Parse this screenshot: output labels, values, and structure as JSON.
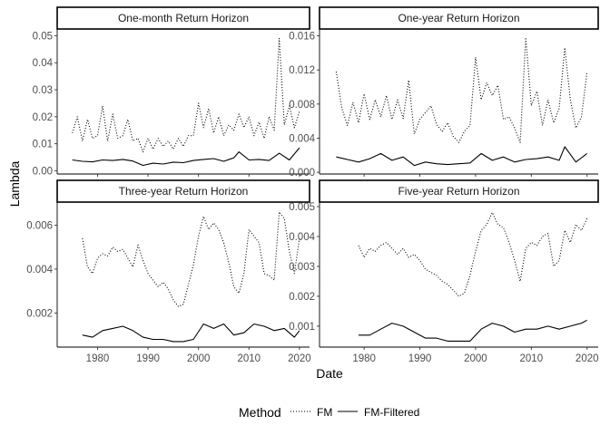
{
  "chart_data": {
    "type": "line",
    "xlabel": "Date",
    "ylabel": "Lambda",
    "legend": {
      "title": "Method",
      "placement": "bottom",
      "entries": [
        {
          "label": "FM",
          "style": "dotted"
        },
        {
          "label": "FM-Filtered",
          "style": "solid"
        }
      ]
    },
    "line_color": "#000000",
    "x_ticks": [
      1980,
      1990,
      2000,
      2010,
      2020
    ],
    "x_tick_labels": [
      "1980",
      "1990",
      "2000",
      "2010",
      "2020"
    ],
    "panels": [
      {
        "title": "One-month Return Horizon",
        "xlim": [
          1972,
          2022
        ],
        "ylim": [
          -0.0012,
          0.0525
        ],
        "y_ticks": [
          0.0,
          0.01,
          0.02,
          0.03,
          0.04,
          0.05
        ],
        "y_tick_labels": [
          "0.00",
          "0.01",
          "0.02",
          "0.03",
          "0.04",
          "0.05"
        ],
        "series": [
          {
            "name": "FM",
            "style": "dotted",
            "x": [
              1975,
              1976,
              1977,
              1978,
              1979,
              1980,
              1981,
              1982,
              1983,
              1984,
              1985,
              1986,
              1987,
              1988,
              1989,
              1990,
              1991,
              1992,
              1993,
              1994,
              1995,
              1996,
              1997,
              1998,
              1999,
              2000,
              2001,
              2002,
              2003,
              2004,
              2005,
              2006,
              2007,
              2008,
              2009,
              2010,
              2011,
              2012,
              2013,
              2014,
              2015,
              2016,
              2017,
              2018,
              2019,
              2020
            ],
            "y": [
              0.014,
              0.02,
              0.011,
              0.019,
              0.012,
              0.013,
              0.024,
              0.011,
              0.021,
              0.012,
              0.013,
              0.019,
              0.011,
              0.012,
              0.007,
              0.012,
              0.008,
              0.012,
              0.009,
              0.011,
              0.008,
              0.012,
              0.009,
              0.013,
              0.013,
              0.025,
              0.016,
              0.023,
              0.014,
              0.02,
              0.013,
              0.017,
              0.015,
              0.021,
              0.016,
              0.02,
              0.013,
              0.018,
              0.012,
              0.02,
              0.015,
              0.049,
              0.017,
              0.024,
              0.016,
              0.022
            ]
          },
          {
            "name": "FM-Filtered",
            "style": "solid",
            "x": [
              1975,
              1977,
              1979,
              1981,
              1983,
              1985,
              1987,
              1989,
              1991,
              1993,
              1995,
              1997,
              1999,
              2001,
              2003,
              2005,
              2007,
              2008,
              2010,
              2012,
              2014,
              2016,
              2018,
              2020
            ],
            "y": [
              0.004,
              0.0035,
              0.0033,
              0.004,
              0.0038,
              0.0042,
              0.0036,
              0.002,
              0.0028,
              0.0025,
              0.0032,
              0.003,
              0.0038,
              0.0042,
              0.0045,
              0.0035,
              0.0048,
              0.007,
              0.004,
              0.0042,
              0.0038,
              0.0065,
              0.004,
              0.0085
            ]
          }
        ]
      },
      {
        "title": "One-year Return Horizon",
        "xlim": [
          1972,
          2022
        ],
        "ylim": [
          -0.0002,
          0.0168
        ],
        "y_ticks": [
          0.0,
          0.004,
          0.008,
          0.012,
          0.016
        ],
        "y_tick_labels": [
          "0.000",
          "0.004",
          "0.008",
          "0.012",
          "0.016"
        ],
        "series": [
          {
            "name": "FM",
            "style": "dotted",
            "x": [
              1975,
              1976,
              1977,
              1978,
              1979,
              1980,
              1981,
              1982,
              1983,
              1984,
              1985,
              1986,
              1987,
              1988,
              1989,
              1990,
              1991,
              1992,
              1993,
              1994,
              1995,
              1996,
              1997,
              1998,
              1999,
              2000,
              2001,
              2002,
              2003,
              2004,
              2005,
              2006,
              2007,
              2008,
              2009,
              2010,
              2011,
              2012,
              2013,
              2014,
              2015,
              2016,
              2017,
              2018,
              2019,
              2020
            ],
            "y": [
              0.0118,
              0.0075,
              0.0055,
              0.0082,
              0.0058,
              0.0092,
              0.0062,
              0.0085,
              0.0065,
              0.009,
              0.0062,
              0.0085,
              0.0063,
              0.0108,
              0.0045,
              0.0062,
              0.007,
              0.0078,
              0.0056,
              0.0048,
              0.0058,
              0.0042,
              0.0035,
              0.0048,
              0.0055,
              0.0135,
              0.0085,
              0.0105,
              0.009,
              0.0102,
              0.0062,
              0.0065,
              0.0052,
              0.0035,
              0.0158,
              0.0078,
              0.0095,
              0.0055,
              0.0085,
              0.0058,
              0.0075,
              0.0146,
              0.0085,
              0.0052,
              0.0065,
              0.0118
            ]
          },
          {
            "name": "FM-Filtered",
            "style": "solid",
            "x": [
              1975,
              1977,
              1979,
              1981,
              1983,
              1985,
              1987,
              1989,
              1991,
              1993,
              1995,
              1997,
              1999,
              2001,
              2003,
              2005,
              2007,
              2009,
              2011,
              2013,
              2015,
              2016,
              2018,
              2020
            ],
            "y": [
              0.0018,
              0.0015,
              0.0012,
              0.0016,
              0.0022,
              0.0014,
              0.0018,
              0.0008,
              0.0012,
              0.001,
              0.0009,
              0.001,
              0.0011,
              0.0022,
              0.0014,
              0.0018,
              0.0012,
              0.0015,
              0.0016,
              0.0018,
              0.0014,
              0.003,
              0.0012,
              0.0022
            ]
          }
        ]
      },
      {
        "title": "Three-year Return Horizon",
        "xlim": [
          1972,
          2022
        ],
        "ylim": [
          0.00045,
          0.00705
        ],
        "y_ticks": [
          0.002,
          0.004,
          0.006
        ],
        "y_tick_labels": [
          "0.002",
          "0.004",
          "0.006"
        ],
        "series": [
          {
            "name": "FM",
            "style": "dotted",
            "x": [
              1977,
              1978,
              1979,
              1980,
              1981,
              1982,
              1983,
              1984,
              1985,
              1986,
              1987,
              1988,
              1989,
              1990,
              1991,
              1992,
              1993,
              1994,
              1995,
              1996,
              1997,
              1998,
              1999,
              2000,
              2001,
              2002,
              2003,
              2004,
              2005,
              2006,
              2007,
              2008,
              2009,
              2010,
              2011,
              2012,
              2013,
              2014,
              2015,
              2016,
              2017,
              2018,
              2019,
              2020
            ],
            "y": [
              0.0054,
              0.0041,
              0.0038,
              0.0045,
              0.0047,
              0.0046,
              0.005,
              0.0048,
              0.0049,
              0.0045,
              0.0041,
              0.0051,
              0.0044,
              0.0038,
              0.0035,
              0.0032,
              0.0034,
              0.0031,
              0.0026,
              0.0023,
              0.0024,
              0.0033,
              0.0042,
              0.0055,
              0.0064,
              0.0058,
              0.0061,
              0.0058,
              0.0052,
              0.0043,
              0.0032,
              0.0029,
              0.0038,
              0.0058,
              0.0055,
              0.0052,
              0.0038,
              0.0037,
              0.0035,
              0.0066,
              0.0063,
              0.0048,
              0.0038,
              0.0054
            ]
          },
          {
            "name": "FM-Filtered",
            "style": "solid",
            "x": [
              1977,
              1979,
              1981,
              1983,
              1985,
              1987,
              1989,
              1991,
              1993,
              1995,
              1997,
              1999,
              2001,
              2003,
              2005,
              2007,
              2009,
              2011,
              2013,
              2015,
              2017,
              2019,
              2020
            ],
            "y": [
              0.001,
              0.0009,
              0.0012,
              0.0013,
              0.0014,
              0.0012,
              0.0009,
              0.0008,
              0.0008,
              0.0007,
              0.0007,
              0.0008,
              0.0015,
              0.0013,
              0.0015,
              0.001,
              0.0011,
              0.0015,
              0.0014,
              0.0012,
              0.0013,
              0.0009,
              0.0012
            ]
          }
        ]
      },
      {
        "title": "Five-year Return Horizon",
        "xlim": [
          1972,
          2022
        ],
        "ylim": [
          0.0003,
          0.00515
        ],
        "y_ticks": [
          0.001,
          0.002,
          0.003,
          0.004,
          0.005
        ],
        "y_tick_labels": [
          "0.001",
          "0.002",
          "0.003",
          "0.004",
          "0.005"
        ],
        "series": [
          {
            "name": "FM",
            "style": "dotted",
            "x": [
              1979,
              1980,
              1981,
              1982,
              1983,
              1984,
              1985,
              1986,
              1987,
              1988,
              1989,
              1990,
              1991,
              1992,
              1993,
              1994,
              1995,
              1996,
              1997,
              1998,
              1999,
              2000,
              2001,
              2002,
              2003,
              2004,
              2005,
              2006,
              2007,
              2008,
              2009,
              2010,
              2011,
              2012,
              2013,
              2014,
              2015,
              2016,
              2017,
              2018,
              2019,
              2020
            ],
            "y": [
              0.0037,
              0.0033,
              0.0036,
              0.0035,
              0.0037,
              0.0038,
              0.0036,
              0.0034,
              0.0036,
              0.0033,
              0.0034,
              0.0032,
              0.0029,
              0.0028,
              0.0027,
              0.0025,
              0.0024,
              0.0022,
              0.002,
              0.0021,
              0.0027,
              0.0035,
              0.0042,
              0.0044,
              0.0048,
              0.0044,
              0.0043,
              0.0038,
              0.0032,
              0.0025,
              0.0036,
              0.0038,
              0.0037,
              0.004,
              0.0041,
              0.003,
              0.0032,
              0.0042,
              0.0038,
              0.0044,
              0.0042,
              0.0046
            ]
          },
          {
            "name": "FM-Filtered",
            "style": "solid",
            "x": [
              1979,
              1981,
              1983,
              1985,
              1987,
              1989,
              1991,
              1993,
              1995,
              1997,
              1999,
              2001,
              2003,
              2005,
              2007,
              2009,
              2011,
              2013,
              2015,
              2017,
              2019,
              2020
            ],
            "y": [
              0.0007,
              0.0007,
              0.0009,
              0.0011,
              0.001,
              0.0008,
              0.0006,
              0.0006,
              0.0005,
              0.0005,
              0.0005,
              0.0009,
              0.0011,
              0.001,
              0.0008,
              0.0009,
              0.0009,
              0.001,
              0.0009,
              0.001,
              0.0011,
              0.0012
            ]
          }
        ]
      }
    ]
  }
}
